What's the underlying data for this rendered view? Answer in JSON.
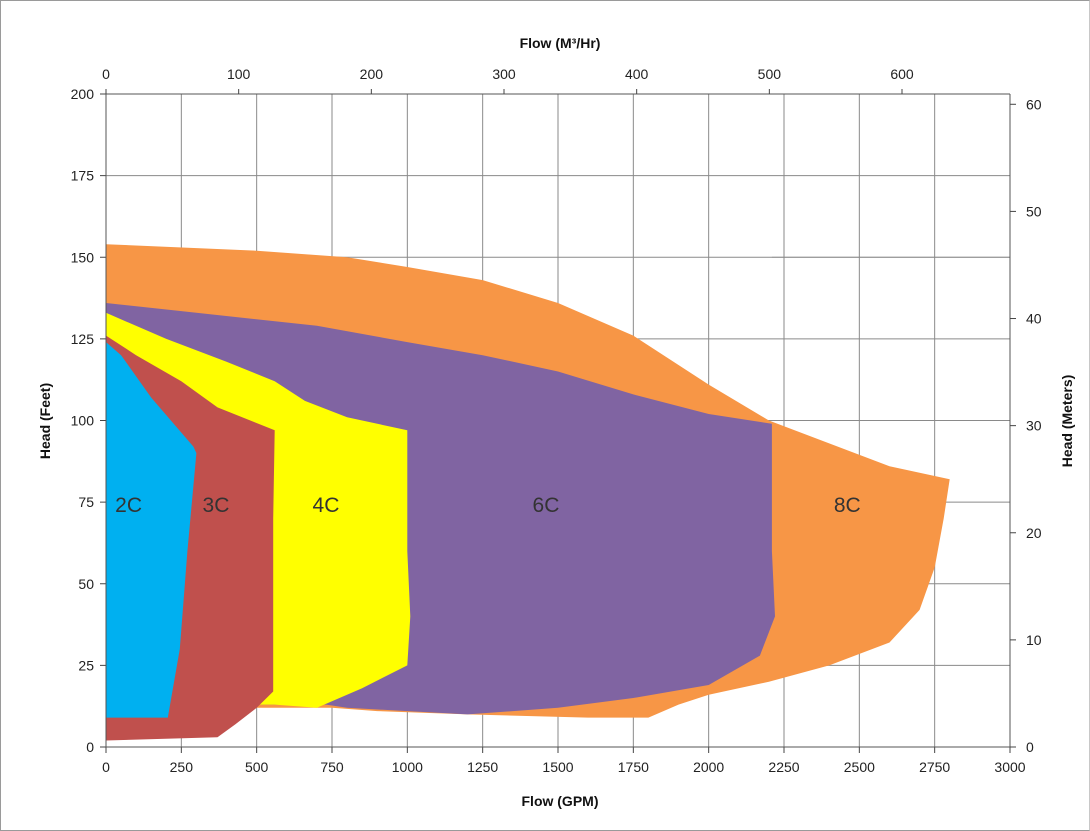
{
  "chart_data": {
    "type": "area",
    "xlabel": "Flow (GPM)",
    "x2label": "Flow (M³/Hr)",
    "ylabel": "Head (Feet)",
    "y2label": "Head (Meters)",
    "xlim": [
      0,
      3000
    ],
    "ylim": [
      0,
      200
    ],
    "x2lim": [
      0,
      681.4
    ],
    "y2lim": [
      0,
      60.96
    ],
    "grid": true,
    "x_ticks": [
      "0",
      "250",
      "500",
      "750",
      "1000",
      "1250",
      "1500",
      "1750",
      "2000",
      "2250",
      "2500",
      "2750",
      "3000"
    ],
    "y_ticks": [
      "0",
      "25",
      "50",
      "75",
      "100",
      "125",
      "150",
      "175",
      "200"
    ],
    "x2_ticks": [
      "0",
      "100",
      "200",
      "300",
      "400",
      "500",
      "600"
    ],
    "y2_ticks": [
      "0",
      "10",
      "20",
      "30",
      "40",
      "50",
      "60"
    ],
    "series": [
      {
        "name": "8C",
        "color": "#F79646",
        "label_at": [
          2460,
          72
        ],
        "points": [
          [
            0,
            154
          ],
          [
            500,
            152
          ],
          [
            800,
            150
          ],
          [
            1000,
            147
          ],
          [
            1250,
            143
          ],
          [
            1500,
            136
          ],
          [
            1750,
            126
          ],
          [
            1900,
            117
          ],
          [
            2000,
            111
          ],
          [
            2200,
            100
          ],
          [
            2400,
            93
          ],
          [
            2600,
            86
          ],
          [
            2800,
            82
          ],
          [
            2780,
            70
          ],
          [
            2750,
            55
          ],
          [
            2700,
            42
          ],
          [
            2600,
            32
          ],
          [
            2400,
            25
          ],
          [
            2200,
            20
          ],
          [
            2000,
            16
          ],
          [
            1900,
            13
          ],
          [
            1800,
            9
          ],
          [
            1600,
            9
          ],
          [
            1200,
            10
          ],
          [
            900,
            11
          ],
          [
            750,
            12
          ],
          [
            700,
            12
          ],
          [
            0,
            12
          ]
        ]
      },
      {
        "name": "6C",
        "color": "#8064A2",
        "label_at": [
          1460,
          72
        ],
        "points": [
          [
            0,
            136
          ],
          [
            300,
            133
          ],
          [
            700,
            129
          ],
          [
            1000,
            124
          ],
          [
            1250,
            120
          ],
          [
            1500,
            115
          ],
          [
            1750,
            108
          ],
          [
            2000,
            102
          ],
          [
            2210,
            99
          ],
          [
            2210,
            60
          ],
          [
            2220,
            40
          ],
          [
            2170,
            28
          ],
          [
            2000,
            19
          ],
          [
            1750,
            15
          ],
          [
            1500,
            12
          ],
          [
            1200,
            10
          ],
          [
            1000,
            11
          ],
          [
            800,
            12
          ],
          [
            730,
            13
          ],
          [
            0,
            13
          ]
        ]
      },
      {
        "name": "4C",
        "color": "#FFFF00",
        "label_at": [
          730,
          72
        ],
        "points": [
          [
            0,
            133
          ],
          [
            200,
            125
          ],
          [
            400,
            118
          ],
          [
            560,
            112
          ],
          [
            660,
            106
          ],
          [
            800,
            101
          ],
          [
            1000,
            97
          ],
          [
            1000,
            60
          ],
          [
            1010,
            40
          ],
          [
            1000,
            25
          ],
          [
            850,
            18
          ],
          [
            700,
            12
          ],
          [
            560,
            13
          ],
          [
            0,
            13
          ]
        ]
      },
      {
        "name": "3C",
        "color": "#C0504D",
        "label_at": [
          365,
          72
        ],
        "points": [
          [
            0,
            126
          ],
          [
            100,
            120
          ],
          [
            250,
            112
          ],
          [
            370,
            104
          ],
          [
            560,
            97
          ],
          [
            555,
            70
          ],
          [
            555,
            40
          ],
          [
            555,
            17
          ],
          [
            500,
            12
          ],
          [
            430,
            7
          ],
          [
            370,
            3
          ],
          [
            0,
            2
          ]
        ]
      },
      {
        "name": "2C",
        "color": "#00B0F0",
        "label_at": [
          75,
          72
        ],
        "points": [
          [
            0,
            124
          ],
          [
            50,
            120
          ],
          [
            150,
            107
          ],
          [
            290,
            92
          ],
          [
            300,
            90
          ],
          [
            270,
            60
          ],
          [
            245,
            30
          ],
          [
            205,
            9
          ],
          [
            0,
            9
          ]
        ]
      }
    ]
  }
}
